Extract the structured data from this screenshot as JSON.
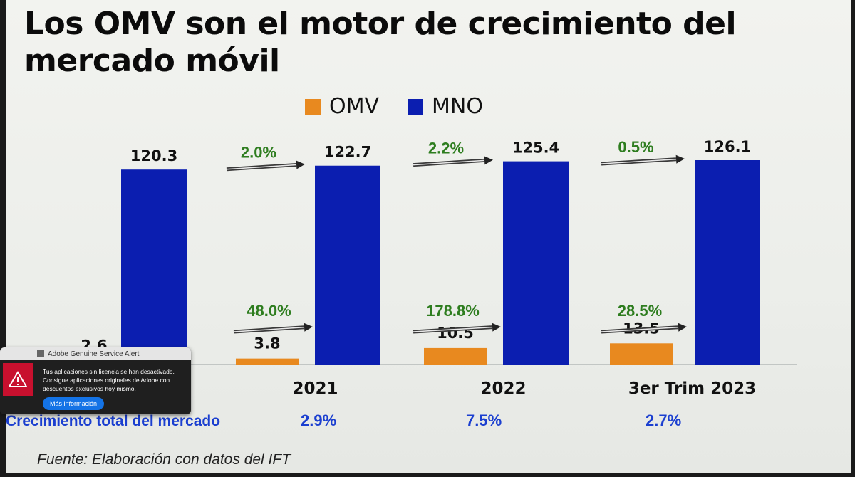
{
  "title": "Los OMV son el motor de crecimiento del mercado móvil",
  "legend": [
    {
      "name": "OMV",
      "color": "#e8891f"
    },
    {
      "name": "MNO",
      "color": "#0b1eb0"
    }
  ],
  "chart_data": {
    "type": "bar",
    "categories": [
      "",
      "2021",
      "2022",
      "3er Trim 2023"
    ],
    "series": [
      {
        "name": "OMV",
        "values": [
          2.6,
          3.8,
          10.5,
          13.5
        ],
        "labels": [
          "2.6",
          "3.8",
          "10.5",
          "13.5"
        ],
        "color": "#e8891f"
      },
      {
        "name": "MNO",
        "values": [
          120.3,
          122.7,
          125.4,
          126.1
        ],
        "labels": [
          "120.3",
          "122.7",
          "125.4",
          "126.1"
        ],
        "color": "#0b1eb0"
      }
    ],
    "mno_growth": [
      "2.0%",
      "2.2%",
      "0.5%"
    ],
    "omv_growth": [
      "48.0%",
      "178.8%",
      "28.5%"
    ],
    "label_color": "#2e7d1f"
  },
  "market_growth": {
    "label": "Crecimiento total del mercado",
    "values": [
      "2.9%",
      "7.5%",
      "2.7%"
    ]
  },
  "source": "Fuente: Elaboración con datos del IFT",
  "alert": {
    "header": "Adobe Genuine Service Alert",
    "message": "Tus aplicaciones sin licencia se han desactivado. Consigue aplicaciones originales de Adobe con descuentos exclusivos hoy mismo.",
    "button": "Más información"
  }
}
